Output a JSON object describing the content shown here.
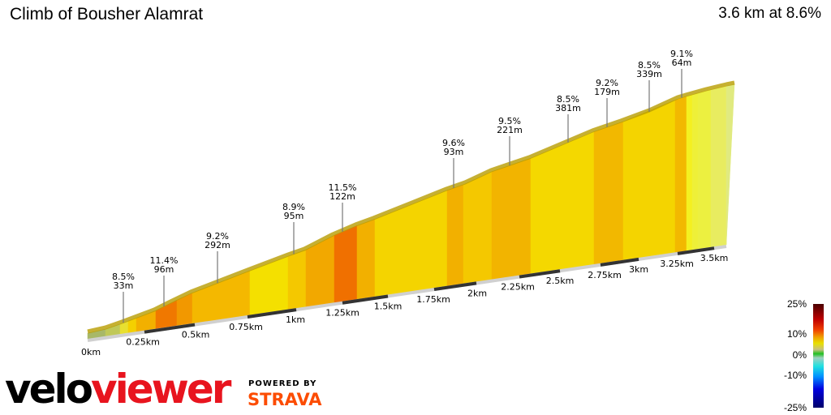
{
  "header": {
    "title": "Climb of Bousher Alamrat",
    "summary": "3.6 km at 8.6%"
  },
  "profile": {
    "annotations": [
      {
        "gradient": "8.5%",
        "length": "33m"
      },
      {
        "gradient": "11.4%",
        "length": "96m"
      },
      {
        "gradient": "9.2%",
        "length": "292m"
      },
      {
        "gradient": "8.9%",
        "length": "95m"
      },
      {
        "gradient": "11.5%",
        "length": "122m"
      },
      {
        "gradient": "9.6%",
        "length": "93m"
      },
      {
        "gradient": "9.5%",
        "length": "221m"
      },
      {
        "gradient": "8.5%",
        "length": "381m"
      },
      {
        "gradient": "9.2%",
        "length": "179m"
      },
      {
        "gradient": "8.5%",
        "length": "339m"
      },
      {
        "gradient": "9.1%",
        "length": "64m"
      }
    ],
    "distance_labels": [
      "0km",
      "0.25km",
      "0.5km",
      "0.75km",
      "1km",
      "1.25km",
      "1.5km",
      "1.75km",
      "2km",
      "2.25km",
      "2.5km",
      "2.75km",
      "3km",
      "3.25km",
      "3.5km"
    ]
  },
  "legend": {
    "labels": [
      "25%",
      "10%",
      "0%",
      "-10%",
      "-25%"
    ]
  },
  "branding": {
    "logo_part1": "velo",
    "logo_part2": "viewer",
    "powered_by": "POWERED BY",
    "strava": "STRAVA",
    "brand_red": "#e8141e",
    "strava_orange": "#fc4c02"
  }
}
